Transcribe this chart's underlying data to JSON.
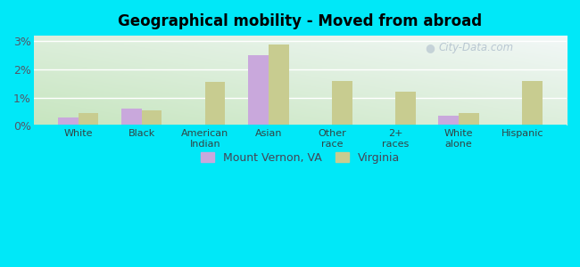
{
  "title": "Geographical mobility - Moved from abroad",
  "categories": [
    "White",
    "Black",
    "American\nIndian",
    "Asian",
    "Other\nrace",
    "2+\nraces",
    "White\nalone",
    "Hispanic"
  ],
  "mount_vernon": [
    0.3,
    0.6,
    0.0,
    2.5,
    0.0,
    0.0,
    0.35,
    0.0
  ],
  "virginia": [
    0.45,
    0.55,
    1.55,
    2.9,
    1.6,
    1.2,
    0.45,
    1.6
  ],
  "mv_color": "#c9a8dc",
  "va_color": "#c8cc90",
  "outer_bg": "#00e8f8",
  "ylim": [
    0,
    3.2
  ],
  "yticks": [
    0,
    1,
    2,
    3
  ],
  "ytick_labels": [
    "0%",
    "1%",
    "2%",
    "3%"
  ],
  "legend_mv": "Mount Vernon, VA",
  "legend_va": "Virginia",
  "bar_width": 0.32,
  "grid_color": "#ffffff",
  "watermark": "City-Data.com"
}
